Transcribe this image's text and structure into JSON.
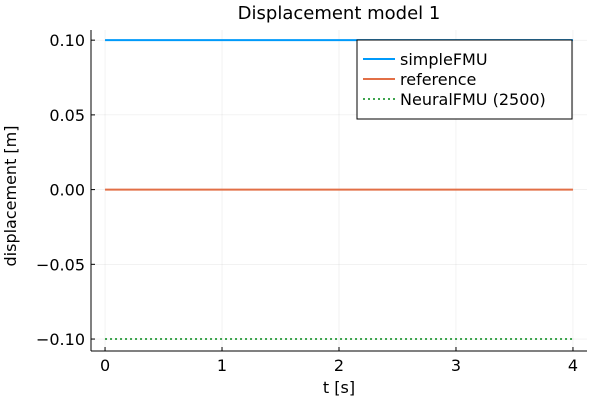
{
  "chart_data": {
    "type": "line",
    "title": "Displacement model 1",
    "xlabel": "t [s]",
    "ylabel": "displacement [m]",
    "xlim": [
      -0.12,
      4.12
    ],
    "ylim": [
      -0.108,
      0.1068
    ],
    "xticks": [
      0,
      1,
      2,
      3,
      4
    ],
    "xtick_labels": [
      "0",
      "1",
      "2",
      "3",
      "4"
    ],
    "yticks": [
      0.1,
      0.05,
      0.0,
      -0.05,
      -0.1
    ],
    "ytick_labels": [
      "0.10",
      "0.05",
      "0.00",
      "−0.05",
      "−0.10"
    ],
    "grid": true,
    "legend_position": "top-right",
    "series": [
      {
        "name": "simpleFMU",
        "color": "#009AFA",
        "style": "solid",
        "x": [
          0,
          4
        ],
        "y": [
          0.1,
          0.1
        ]
      },
      {
        "name": "reference",
        "color": "#E26F46",
        "style": "solid",
        "x": [
          0,
          4
        ],
        "y": [
          0.0,
          0.0
        ]
      },
      {
        "name": "NeuralFMU (2500)",
        "color": "#3EA44E",
        "style": "dotted",
        "x": [
          0,
          4
        ],
        "y": [
          -0.1,
          -0.1
        ]
      }
    ]
  }
}
